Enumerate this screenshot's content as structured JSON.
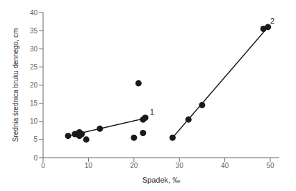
{
  "chart_data": {
    "type": "scatter",
    "title": "",
    "xlabel": "Spadek, ‰",
    "ylabel": "Srednia średnica bruku dennego, cm",
    "xlim": [
      0,
      52
    ],
    "ylim": [
      0,
      40
    ],
    "xticks": [
      0,
      10,
      20,
      30,
      40,
      50
    ],
    "yticks": [
      0,
      5,
      10,
      15,
      20,
      25,
      30,
      35,
      40
    ],
    "series": [
      {
        "type": "scatter",
        "marker": "circle",
        "color": "#1a1a1a",
        "x": [
          5.5,
          7.0,
          7.5,
          8.0,
          8.0,
          8.5,
          9.5,
          12.5,
          20.0,
          21.0,
          22.0,
          22.5,
          22.0
        ],
        "values": [
          6.0,
          6.5,
          6.5,
          7.0,
          6.0,
          6.5,
          5.0,
          8.0,
          5.5,
          20.5,
          6.8,
          11.0,
          10.5
        ]
      },
      {
        "type": "line",
        "line_style": "solid",
        "color": "#1a1a1a",
        "x": [
          5.5,
          23.0
        ],
        "values": [
          6.0,
          11.0
        ]
      },
      {
        "type": "scatter",
        "marker": "circle",
        "color": "#1a1a1a",
        "x": [
          28.5,
          32.0,
          35.0,
          48.5,
          49.5
        ],
        "values": [
          5.5,
          10.5,
          14.5,
          35.5,
          36.0
        ]
      },
      {
        "type": "line",
        "line_style": "solid",
        "color": "#1a1a1a",
        "x": [
          28.5,
          49.5
        ],
        "values": [
          5.5,
          36.0
        ]
      }
    ],
    "annotations": [
      {
        "text": "1",
        "x": 23.5,
        "y": 11.5,
        "color": "#1a1a1a"
      },
      {
        "text": "2",
        "x": 50.0,
        "y": 36.5,
        "color": "#1a1a1a"
      }
    ]
  }
}
